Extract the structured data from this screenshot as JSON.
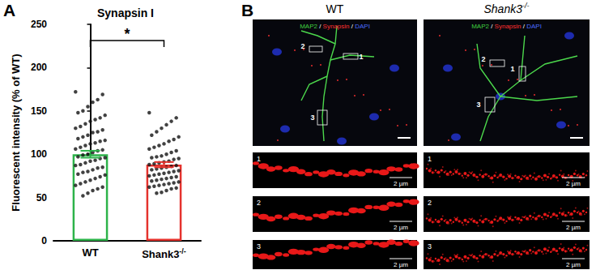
{
  "panel_labels": [
    "A",
    "B"
  ],
  "chart_data": {
    "type": "bar",
    "title": "Synapsin I",
    "categories": [
      "WT",
      "Shank3-/-"
    ],
    "values": [
      100,
      88
    ],
    "errors": [
      4,
      3
    ],
    "colors": [
      "#2db34a",
      "#e5322d"
    ],
    "points": [
      [
        172,
        169,
        163,
        160,
        155,
        150,
        148,
        145,
        142,
        140,
        138,
        135,
        132,
        130,
        128,
        126,
        125,
        122,
        120,
        118,
        116,
        115,
        113,
        112,
        110,
        108,
        106,
        105,
        104,
        102,
        100,
        99,
        97,
        96,
        95,
        93,
        92,
        90,
        88,
        87,
        85,
        84,
        82,
        80,
        79,
        77,
        76,
        74,
        72,
        70,
        68,
        66,
        64,
        62,
        60,
        58,
        55,
        52
      ],
      [
        148,
        142,
        138,
        134,
        130,
        126,
        122,
        120,
        117,
        115,
        112,
        110,
        108,
        106,
        104,
        102,
        100,
        98,
        97,
        96,
        95,
        94,
        92,
        91,
        90,
        89,
        88,
        87,
        86,
        85,
        84,
        83,
        82,
        81,
        80,
        79,
        78,
        77,
        76,
        75,
        74,
        73,
        72,
        71,
        70,
        69,
        68,
        67,
        66,
        65,
        64,
        63,
        62,
        61,
        60,
        58,
        56,
        55
      ]
    ],
    "ylabel": "Fluorescent intensity (% of WT)",
    "ylim": [
      0,
      250
    ],
    "yticks": [
      0,
      50,
      100,
      150,
      200,
      250
    ],
    "grid": false,
    "significance": "*"
  },
  "images": {
    "columns": [
      "WT",
      "Shank3-/-"
    ],
    "stains": [
      {
        "text": "MAP2",
        "color": "#3fd13f"
      },
      {
        "text": "Synapsin",
        "color": "#ff3030"
      },
      {
        "text": "DAPI",
        "color": "#4a6bff"
      }
    ],
    "stain_separator": " / ",
    "regions": [
      "1",
      "2",
      "3"
    ],
    "scale_bar": "2 µm"
  }
}
